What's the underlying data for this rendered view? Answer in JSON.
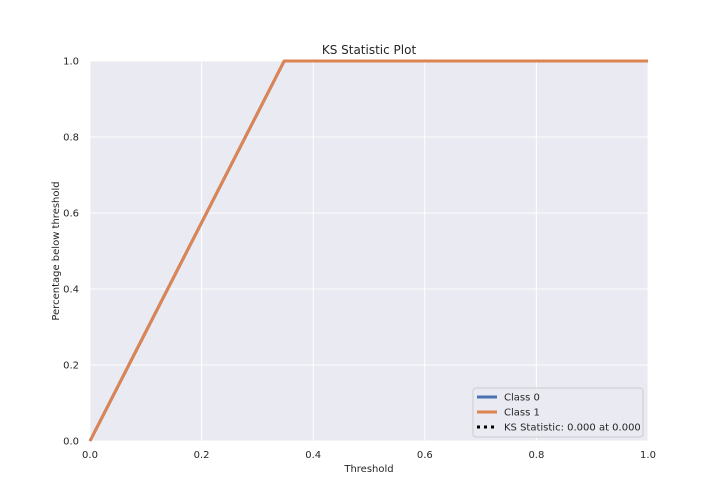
{
  "chart_data": {
    "type": "line",
    "title": "KS Statistic Plot",
    "xlabel": "Threshold",
    "ylabel": "Percentage below threshold",
    "xlim": [
      0.0,
      1.0
    ],
    "ylim": [
      0.0,
      1.0
    ],
    "xticks": [
      "0.0",
      "0.2",
      "0.4",
      "0.6",
      "0.8",
      "1.0"
    ],
    "yticks": [
      "0.0",
      "0.2",
      "0.4",
      "0.6",
      "0.8",
      "1.0"
    ],
    "grid": true,
    "legend_position": "lower-right",
    "series": [
      {
        "name": "Class 0",
        "color": "#4c72b0",
        "style": "solid",
        "x": [
          0.0,
          0.348,
          1.0
        ],
        "y": [
          0.0,
          1.0,
          1.0
        ]
      },
      {
        "name": "Class 1",
        "color": "#dd8452",
        "style": "solid",
        "x": [
          0.0,
          0.348,
          1.0
        ],
        "y": [
          0.0,
          1.0,
          1.0
        ]
      },
      {
        "name": "KS Statistic: 0.000 at 0.000",
        "color": "#000000",
        "style": "dotted",
        "x": [
          0.0,
          0.0
        ],
        "y": [
          0.0,
          0.0
        ]
      }
    ]
  }
}
